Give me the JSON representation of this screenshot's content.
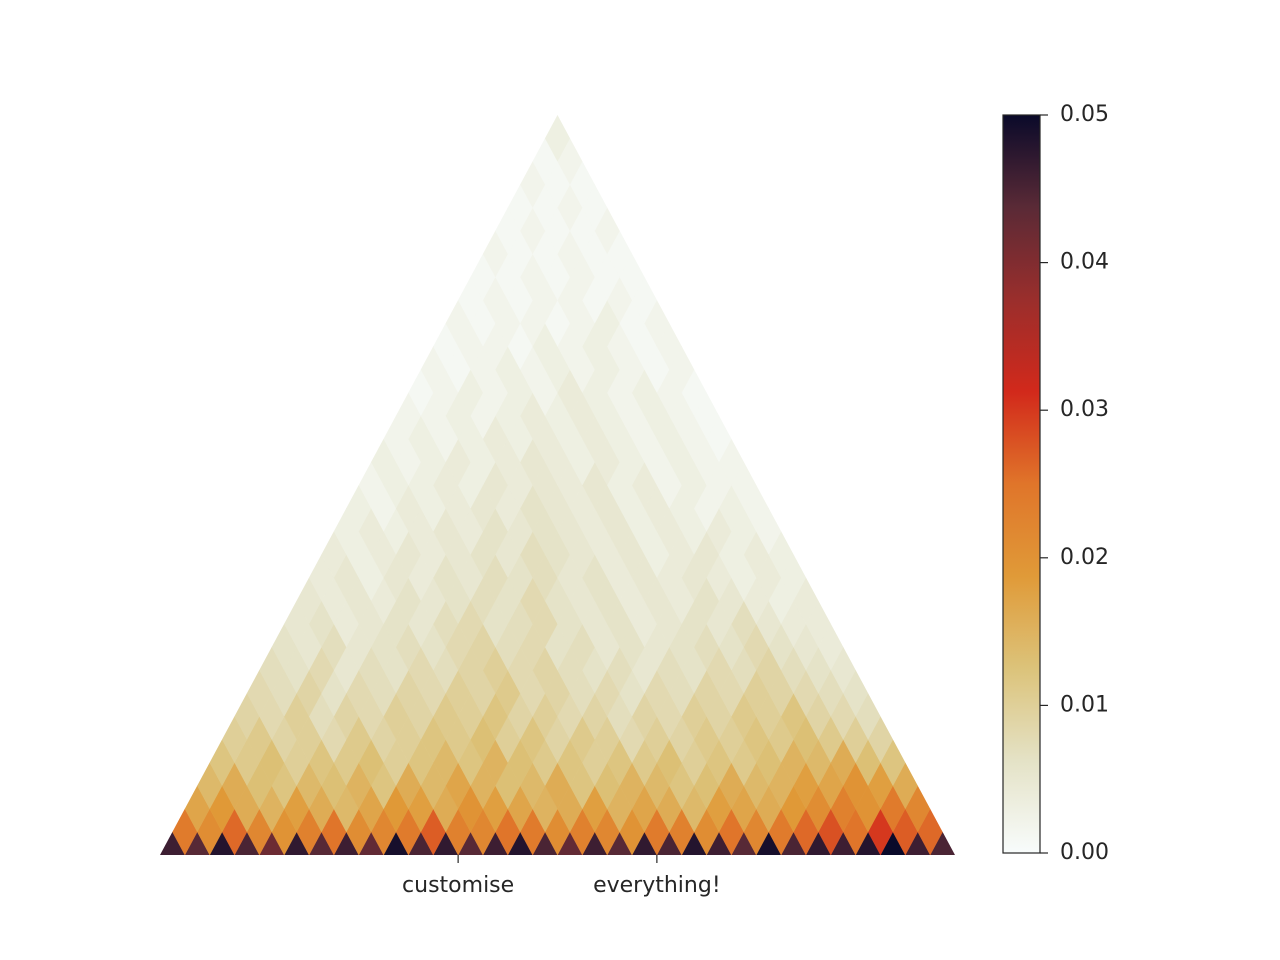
{
  "chart_data": {
    "type": "triangular-heatmap",
    "xlim": [
      0,
      32
    ],
    "xticks": [
      {
        "value": 12,
        "label": "customise"
      },
      {
        "value": 20,
        "label": "everything!"
      }
    ],
    "clim": [
      0,
      0.05
    ],
    "cticks": [
      {
        "value": 0,
        "label": "0.00"
      },
      0.01,
      0.02,
      0.03,
      0.04,
      0.05
    ],
    "colormap": [
      "#f8fcfc",
      "#e4e2c6",
      "#dcc37a",
      "#e09a38",
      "#e0752a",
      "#d2291b",
      "#9a2e2c",
      "#5a2a36",
      "#0a0a2a"
    ],
    "diagonals": [
      [
        0.046,
        0.044,
        0.048,
        0.045,
        0.042,
        0.047,
        0.044,
        0.046,
        0.043,
        0.049,
        0.045,
        0.047,
        0.044,
        0.046,
        0.048,
        0.045,
        0.043,
        0.046,
        0.044,
        0.047,
        0.045,
        0.048,
        0.046,
        0.044,
        0.049,
        0.045,
        0.047,
        0.046,
        0.048,
        0.05,
        0.046,
        0.045
      ],
      [
        0.024,
        0.021,
        0.026,
        0.022,
        0.02,
        0.023,
        0.025,
        0.021,
        0.022,
        0.024,
        0.027,
        0.023,
        0.022,
        0.025,
        0.024,
        0.021,
        0.023,
        0.022,
        0.02,
        0.024,
        0.023,
        0.021,
        0.025,
        0.022,
        0.024,
        0.026,
        0.028,
        0.025,
        0.03,
        0.027,
        0.026
      ],
      [
        0.017,
        0.019,
        0.016,
        0.015,
        0.018,
        0.016,
        0.014,
        0.017,
        0.019,
        0.018,
        0.016,
        0.02,
        0.018,
        0.017,
        0.015,
        0.016,
        0.018,
        0.015,
        0.017,
        0.016,
        0.014,
        0.018,
        0.017,
        0.016,
        0.019,
        0.021,
        0.023,
        0.02,
        0.024,
        0.022
      ],
      [
        0.014,
        0.016,
        0.013,
        0.012,
        0.014,
        0.013,
        0.015,
        0.012,
        0.016,
        0.014,
        0.017,
        0.015,
        0.013,
        0.014,
        0.016,
        0.012,
        0.013,
        0.015,
        0.014,
        0.012,
        0.013,
        0.016,
        0.014,
        0.015,
        0.018,
        0.017,
        0.02,
        0.018,
        0.016
      ],
      [
        0.012,
        0.011,
        0.013,
        0.01,
        0.012,
        0.011,
        0.013,
        0.01,
        0.012,
        0.014,
        0.012,
        0.015,
        0.013,
        0.011,
        0.012,
        0.01,
        0.012,
        0.011,
        0.013,
        0.01,
        0.012,
        0.011,
        0.013,
        0.015,
        0.014,
        0.016,
        0.013,
        0.012
      ],
      [
        0.01,
        0.011,
        0.009,
        0.01,
        0.008,
        0.011,
        0.009,
        0.01,
        0.012,
        0.011,
        0.013,
        0.01,
        0.012,
        0.009,
        0.011,
        0.01,
        0.008,
        0.01,
        0.009,
        0.011,
        0.01,
        0.012,
        0.011,
        0.013,
        0.011,
        0.01,
        0.009
      ],
      [
        0.009,
        0.008,
        0.01,
        0.007,
        0.009,
        0.008,
        0.01,
        0.009,
        0.011,
        0.01,
        0.012,
        0.009,
        0.01,
        0.008,
        0.009,
        0.007,
        0.009,
        0.008,
        0.01,
        0.009,
        0.011,
        0.01,
        0.012,
        0.009,
        0.008,
        0.007
      ],
      [
        0.008,
        0.007,
        0.009,
        0.006,
        0.008,
        0.007,
        0.009,
        0.008,
        0.01,
        0.009,
        0.011,
        0.008,
        0.009,
        0.007,
        0.008,
        0.006,
        0.008,
        0.007,
        0.009,
        0.008,
        0.01,
        0.009,
        0.008,
        0.007,
        0.006
      ],
      [
        0.007,
        0.006,
        0.008,
        0.005,
        0.007,
        0.006,
        0.008,
        0.007,
        0.009,
        0.01,
        0.008,
        0.009,
        0.007,
        0.006,
        0.007,
        0.005,
        0.007,
        0.006,
        0.008,
        0.007,
        0.009,
        0.007,
        0.006,
        0.005
      ],
      [
        0.006,
        0.005,
        0.007,
        0.005,
        0.006,
        0.007,
        0.006,
        0.008,
        0.009,
        0.007,
        0.008,
        0.006,
        0.007,
        0.005,
        0.006,
        0.005,
        0.006,
        0.007,
        0.006,
        0.008,
        0.006,
        0.005,
        0.004
      ],
      [
        0.005,
        0.006,
        0.004,
        0.005,
        0.006,
        0.005,
        0.007,
        0.008,
        0.006,
        0.007,
        0.008,
        0.006,
        0.005,
        0.006,
        0.004,
        0.005,
        0.006,
        0.005,
        0.007,
        0.005,
        0.004,
        0.004
      ],
      [
        0.005,
        0.004,
        0.005,
        0.004,
        0.006,
        0.005,
        0.006,
        0.007,
        0.006,
        0.008,
        0.006,
        0.005,
        0.006,
        0.004,
        0.005,
        0.004,
        0.006,
        0.005,
        0.004,
        0.003,
        0.004
      ],
      [
        0.004,
        0.005,
        0.003,
        0.005,
        0.004,
        0.006,
        0.005,
        0.007,
        0.006,
        0.007,
        0.005,
        0.006,
        0.004,
        0.005,
        0.004,
        0.005,
        0.004,
        0.003,
        0.004,
        0.003
      ],
      [
        0.004,
        0.003,
        0.004,
        0.005,
        0.004,
        0.005,
        0.006,
        0.005,
        0.007,
        0.006,
        0.005,
        0.004,
        0.005,
        0.003,
        0.004,
        0.005,
        0.003,
        0.004,
        0.003
      ],
      [
        0.003,
        0.004,
        0.003,
        0.004,
        0.005,
        0.004,
        0.006,
        0.005,
        0.006,
        0.005,
        0.004,
        0.005,
        0.003,
        0.004,
        0.003,
        0.004,
        0.003,
        0.002
      ],
      [
        0.003,
        0.002,
        0.004,
        0.003,
        0.004,
        0.005,
        0.004,
        0.006,
        0.005,
        0.004,
        0.005,
        0.003,
        0.004,
        0.003,
        0.002,
        0.003,
        0.002
      ],
      [
        0.002,
        0.003,
        0.003,
        0.004,
        0.003,
        0.005,
        0.004,
        0.005,
        0.004,
        0.005,
        0.003,
        0.004,
        0.002,
        0.003,
        0.002,
        0.002
      ],
      [
        0.003,
        0.002,
        0.003,
        0.004,
        0.003,
        0.004,
        0.005,
        0.004,
        0.003,
        0.004,
        0.003,
        0.002,
        0.003,
        0.002,
        0.002
      ],
      [
        0.002,
        0.003,
        0.002,
        0.003,
        0.004,
        0.003,
        0.004,
        0.003,
        0.004,
        0.003,
        0.002,
        0.003,
        0.002,
        0.001
      ],
      [
        0.002,
        0.002,
        0.003,
        0.002,
        0.003,
        0.004,
        0.003,
        0.004,
        0.003,
        0.002,
        0.003,
        0.002,
        0.001
      ],
      [
        0.001,
        0.002,
        0.003,
        0.002,
        0.003,
        0.002,
        0.004,
        0.003,
        0.002,
        0.003,
        0.002,
        0.001
      ],
      [
        0.002,
        0.001,
        0.002,
        0.003,
        0.002,
        0.003,
        0.002,
        0.003,
        0.002,
        0.001,
        0.002
      ],
      [
        0.001,
        0.002,
        0.002,
        0.001,
        0.003,
        0.002,
        0.003,
        0.002,
        0.001,
        0.002
      ],
      [
        0.002,
        0.001,
        0.002,
        0.002,
        0.001,
        0.002,
        0.003,
        0.001,
        0.002
      ],
      [
        0.001,
        0.002,
        0.001,
        0.002,
        0.002,
        0.001,
        0.002,
        0.001
      ],
      [
        0.001,
        0.001,
        0.002,
        0.001,
        0.002,
        0.001,
        0.001
      ],
      [
        0.002,
        0.001,
        0.001,
        0.002,
        0.001,
        0.001
      ],
      [
        0.001,
        0.002,
        0.001,
        0.001,
        0.002
      ],
      [
        0.001,
        0.001,
        0.002,
        0.001
      ],
      [
        0.002,
        0.001,
        0.001
      ],
      [
        0.001,
        0.002
      ],
      [
        0.003
      ]
    ]
  }
}
